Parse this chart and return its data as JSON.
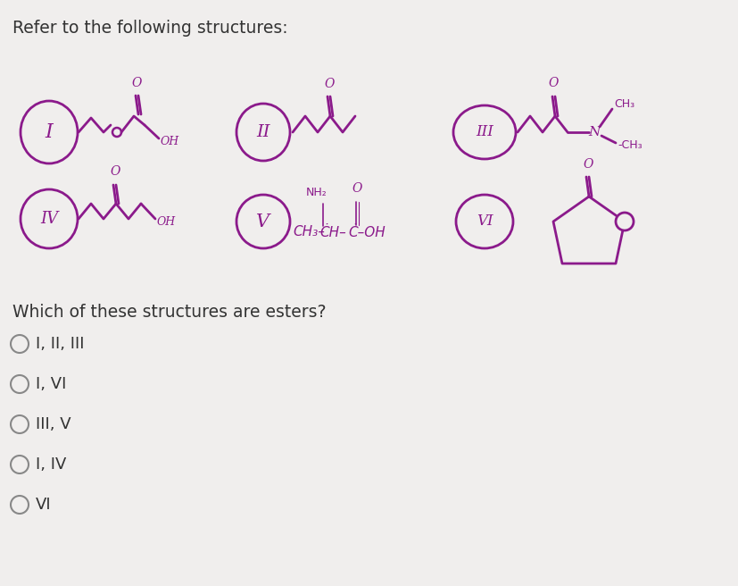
{
  "background_color": "#f0eeed",
  "title_text": "Refer to the following structures:",
  "title_fontsize": 13.5,
  "question_text": "Which of these structures are esters?",
  "question_fontsize": 13.5,
  "options": [
    "I, II, III",
    "I, VI",
    "III, V",
    "I, IV",
    "VI"
  ],
  "option_fontsize": 13,
  "ink_color": "#8b1a8b",
  "black_color": "#333333",
  "gray_color": "#888888"
}
